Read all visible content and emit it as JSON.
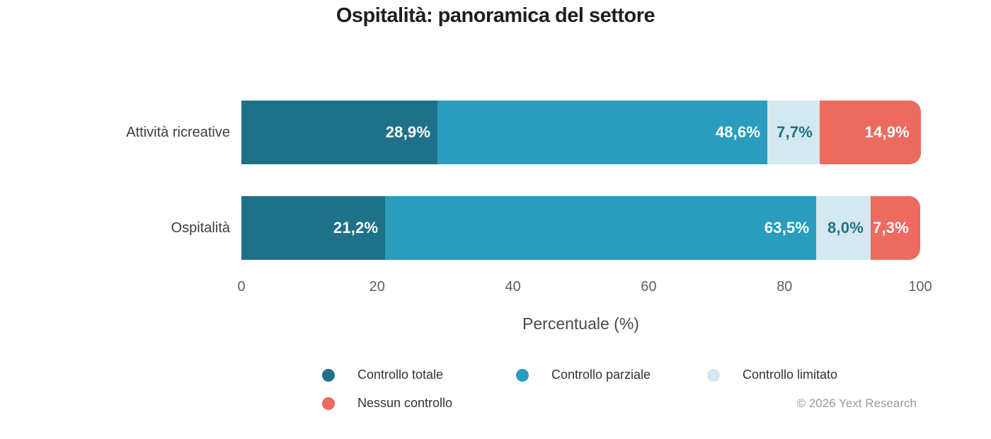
{
  "title": "Ospitalità: panoramica del settore",
  "chart_data": {
    "type": "bar",
    "orientation": "horizontal-stacked",
    "title": "Ospitalità: panoramica del settore",
    "categories": [
      "Attività ricreative",
      "Ospitalità"
    ],
    "series": [
      {
        "name": "Controllo totale",
        "color": "#1f7189",
        "label_color": "#ffffff",
        "values": [
          28.9,
          21.2
        ],
        "value_labels": [
          "28,9%",
          "21,2%"
        ]
      },
      {
        "name": "Controllo parziale",
        "color": "#2a9dbe",
        "label_color": "#ffffff",
        "values": [
          48.6,
          63.5
        ],
        "value_labels": [
          "48,6%",
          "63,5%"
        ]
      },
      {
        "name": "Controllo limitato",
        "color": "#d3e8ef",
        "label_color": "#1f7189",
        "values": [
          7.7,
          8.0
        ],
        "value_labels": [
          "7,7%",
          "8,0%"
        ]
      },
      {
        "name": "Nessun controllo",
        "color": "#ed6a5f",
        "label_color": "#ffffff",
        "values": [
          14.9,
          7.3
        ],
        "value_labels": [
          "14,9%",
          "7,3%"
        ]
      }
    ],
    "xlabel": "Percentuale (%)",
    "x_ticks": [
      "0",
      "20",
      "40",
      "60",
      "80",
      "100"
    ],
    "xlim": [
      0,
      100
    ],
    "grid": false,
    "legend_position": "bottom"
  },
  "footer": {
    "copyright": "© 2026 Yext Research"
  }
}
